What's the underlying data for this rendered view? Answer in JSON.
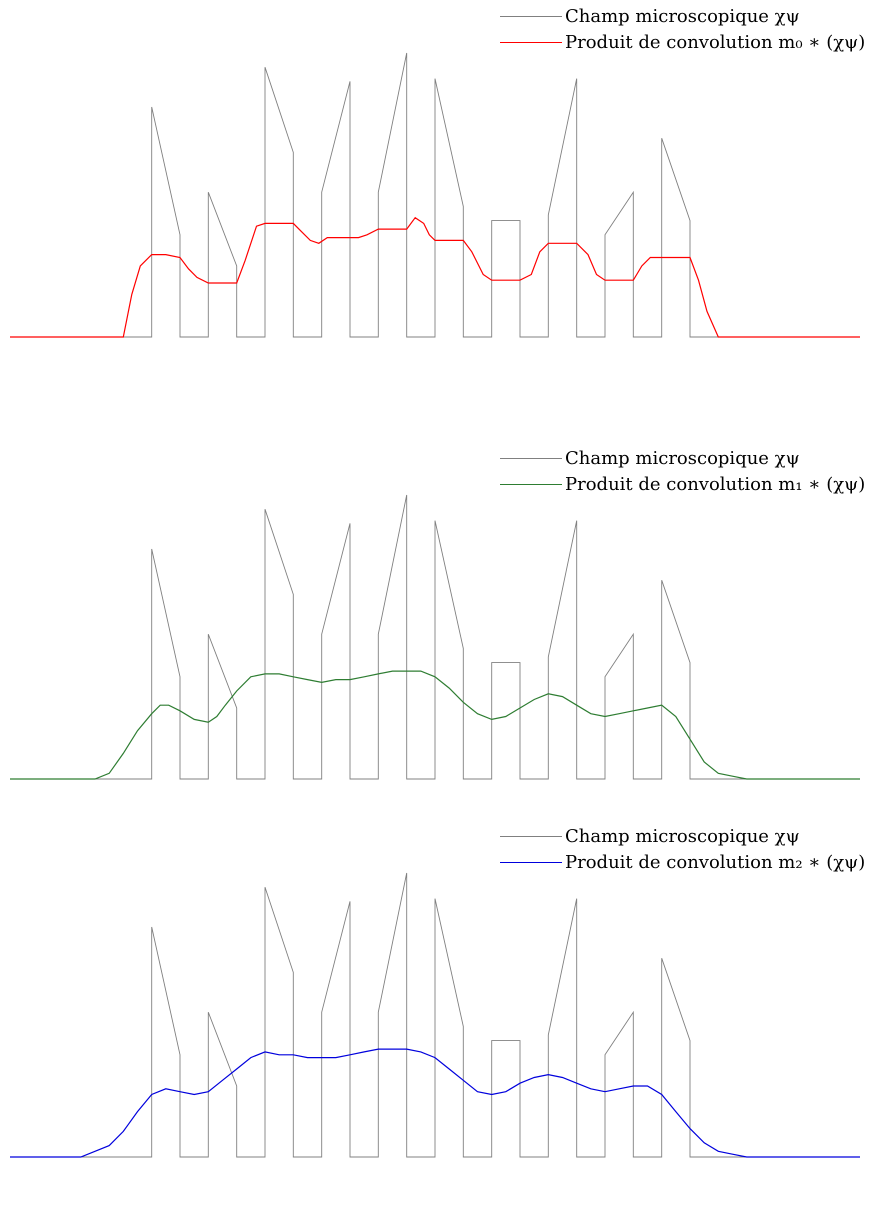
{
  "panels": [
    {
      "legend": {
        "micro": {
          "text": "Champ microscopique χψ",
          "color": "#808080"
        },
        "conv": {
          "text": "Produit de convolution m₀ ∗ (χψ)",
          "color": "#ff0000"
        }
      }
    },
    {
      "legend": {
        "micro": {
          "text": "Champ microscopique χψ",
          "color": "#808080"
        },
        "conv": {
          "text": "Produit de convolution m₁ ∗ (χψ)",
          "color": "#2e7d32"
        }
      }
    },
    {
      "legend": {
        "micro": {
          "text": "Champ microscopique χψ",
          "color": "#808080"
        },
        "conv": {
          "text": "Produit de convolution m₂ ∗ (χψ)",
          "color": "#0000dd"
        }
      }
    }
  ],
  "chart_data": [
    {
      "type": "line",
      "xlim": [
        0,
        30
      ],
      "ylim": [
        0,
        1
      ],
      "micro": {
        "name": "Champ microscopique χψ",
        "x": [
          0,
          5,
          5,
          6,
          6,
          7,
          7,
          8,
          8,
          9,
          9,
          10,
          10,
          11,
          11,
          12,
          12,
          13,
          13,
          14,
          14,
          15,
          15,
          16,
          16,
          17,
          17,
          18,
          18,
          19,
          19,
          20,
          20,
          21,
          21,
          22,
          22,
          23,
          23,
          24,
          24,
          30
        ],
        "y": [
          0,
          0,
          0.81,
          0.36,
          0,
          0,
          0.51,
          0.25,
          0,
          0,
          0.95,
          0.65,
          0,
          0,
          0.51,
          0.9,
          0,
          0,
          0.51,
          1.0,
          0,
          0,
          0.91,
          0.46,
          0,
          0,
          0.41,
          0.41,
          0,
          0,
          0.43,
          0.91,
          0,
          0,
          0.36,
          0.51,
          0,
          0,
          0.7,
          0.41,
          0,
          0
        ]
      },
      "conv": {
        "name": "Produit de convolution m₀ ∗ (χψ)",
        "color": "#ff0000",
        "x": [
          0,
          4,
          4.3,
          4.6,
          5,
          5.2,
          5.5,
          6,
          6.3,
          6.6,
          7,
          7.5,
          8,
          8.3,
          8.7,
          9,
          9.5,
          10,
          10.3,
          10.6,
          10.9,
          11.2,
          11.6,
          12,
          12.3,
          12.6,
          13,
          13.6,
          14,
          14.3,
          14.6,
          14.8,
          15,
          15.5,
          16,
          16.3,
          16.7,
          17,
          17.5,
          18,
          18.4,
          18.7,
          19,
          19.5,
          20,
          20.4,
          20.7,
          21,
          21.5,
          22,
          22.3,
          22.6,
          23,
          23.5,
          24,
          24.3,
          24.6,
          25,
          30
        ],
        "y": [
          0,
          0,
          0.15,
          0.25,
          0.29,
          0.29,
          0.29,
          0.28,
          0.24,
          0.21,
          0.19,
          0.19,
          0.19,
          0.27,
          0.39,
          0.4,
          0.4,
          0.4,
          0.37,
          0.34,
          0.33,
          0.35,
          0.35,
          0.35,
          0.35,
          0.36,
          0.38,
          0.38,
          0.38,
          0.42,
          0.4,
          0.36,
          0.34,
          0.34,
          0.34,
          0.3,
          0.22,
          0.2,
          0.2,
          0.2,
          0.22,
          0.3,
          0.33,
          0.33,
          0.33,
          0.29,
          0.22,
          0.2,
          0.2,
          0.2,
          0.25,
          0.28,
          0.28,
          0.28,
          0.28,
          0.2,
          0.09,
          0,
          0
        ]
      }
    },
    {
      "type": "line",
      "xlim": [
        0,
        30
      ],
      "ylim": [
        0,
        1
      ],
      "micro": {
        "name": "Champ microscopique χψ",
        "x": [
          0,
          5,
          5,
          6,
          6,
          7,
          7,
          8,
          8,
          9,
          9,
          10,
          10,
          11,
          11,
          12,
          12,
          13,
          13,
          14,
          14,
          15,
          15,
          16,
          16,
          17,
          17,
          18,
          18,
          19,
          19,
          20,
          20,
          21,
          21,
          22,
          22,
          23,
          23,
          24,
          24,
          30
        ],
        "y": [
          0,
          0,
          0.81,
          0.36,
          0,
          0,
          0.51,
          0.25,
          0,
          0,
          0.95,
          0.65,
          0,
          0,
          0.51,
          0.9,
          0,
          0,
          0.51,
          1.0,
          0,
          0,
          0.91,
          0.46,
          0,
          0,
          0.41,
          0.41,
          0,
          0,
          0.43,
          0.91,
          0,
          0,
          0.36,
          0.51,
          0,
          0,
          0.7,
          0.41,
          0,
          0
        ]
      },
      "conv": {
        "name": "Produit de convolution m₁ ∗ (χψ)",
        "color": "#2e7d32",
        "x": [
          0,
          3,
          3.5,
          4,
          4.5,
          5,
          5.3,
          5.6,
          6,
          6.5,
          7,
          7.3,
          7.6,
          8,
          8.5,
          9,
          9.5,
          10,
          10.5,
          11,
          11.5,
          12,
          12.5,
          13,
          13.5,
          14,
          14.5,
          15,
          15.5,
          16,
          16.5,
          17,
          17.5,
          18,
          18.5,
          19,
          19.5,
          20,
          20.5,
          21,
          21.5,
          22,
          22.5,
          23,
          23.5,
          24,
          24.5,
          25,
          25.5,
          26,
          30
        ],
        "y": [
          0,
          0,
          0.02,
          0.09,
          0.17,
          0.23,
          0.26,
          0.26,
          0.24,
          0.21,
          0.2,
          0.22,
          0.26,
          0.31,
          0.36,
          0.37,
          0.37,
          0.36,
          0.35,
          0.34,
          0.35,
          0.35,
          0.36,
          0.37,
          0.38,
          0.38,
          0.38,
          0.36,
          0.32,
          0.27,
          0.23,
          0.21,
          0.22,
          0.25,
          0.28,
          0.3,
          0.29,
          0.26,
          0.23,
          0.22,
          0.23,
          0.24,
          0.25,
          0.26,
          0.22,
          0.14,
          0.06,
          0.02,
          0.01,
          0,
          0
        ]
      }
    },
    {
      "type": "line",
      "xlim": [
        0,
        30
      ],
      "ylim": [
        0,
        1
      ],
      "micro": {
        "name": "Champ microscopique χψ",
        "x": [
          0,
          5,
          5,
          6,
          6,
          7,
          7,
          8,
          8,
          9,
          9,
          10,
          10,
          11,
          11,
          12,
          12,
          13,
          13,
          14,
          14,
          15,
          15,
          16,
          16,
          17,
          17,
          18,
          18,
          19,
          19,
          20,
          20,
          21,
          21,
          22,
          22,
          23,
          23,
          24,
          24,
          30
        ],
        "y": [
          0,
          0,
          0.81,
          0.36,
          0,
          0,
          0.51,
          0.25,
          0,
          0,
          0.95,
          0.65,
          0,
          0,
          0.51,
          0.9,
          0,
          0,
          0.51,
          1.0,
          0,
          0,
          0.91,
          0.46,
          0,
          0,
          0.41,
          0.41,
          0,
          0,
          0.43,
          0.91,
          0,
          0,
          0.36,
          0.51,
          0,
          0,
          0.7,
          0.41,
          0,
          0
        ]
      },
      "conv": {
        "name": "Produit de convolution m₂ ∗ (χψ)",
        "color": "#0000dd",
        "x": [
          0,
          2.5,
          3,
          3.5,
          4,
          4.5,
          5,
          5.5,
          6,
          6.5,
          7,
          7.5,
          8,
          8.5,
          9,
          9.5,
          10,
          10.5,
          11,
          11.5,
          12,
          12.5,
          13,
          13.5,
          14,
          14.5,
          15,
          15.5,
          16,
          16.5,
          17,
          17.5,
          18,
          18.5,
          19,
          19.5,
          20,
          20.5,
          21,
          21.5,
          22,
          22.5,
          23,
          23.5,
          24,
          24.5,
          25,
          25.5,
          26,
          26.5,
          27,
          30
        ],
        "y": [
          0,
          0,
          0.02,
          0.04,
          0.09,
          0.16,
          0.22,
          0.24,
          0.23,
          0.22,
          0.23,
          0.27,
          0.31,
          0.35,
          0.37,
          0.36,
          0.36,
          0.35,
          0.35,
          0.35,
          0.36,
          0.37,
          0.38,
          0.38,
          0.38,
          0.37,
          0.35,
          0.31,
          0.27,
          0.23,
          0.22,
          0.23,
          0.26,
          0.28,
          0.29,
          0.28,
          0.26,
          0.24,
          0.23,
          0.24,
          0.25,
          0.25,
          0.22,
          0.16,
          0.1,
          0.05,
          0.02,
          0.01,
          0,
          0,
          0,
          0
        ]
      }
    }
  ]
}
